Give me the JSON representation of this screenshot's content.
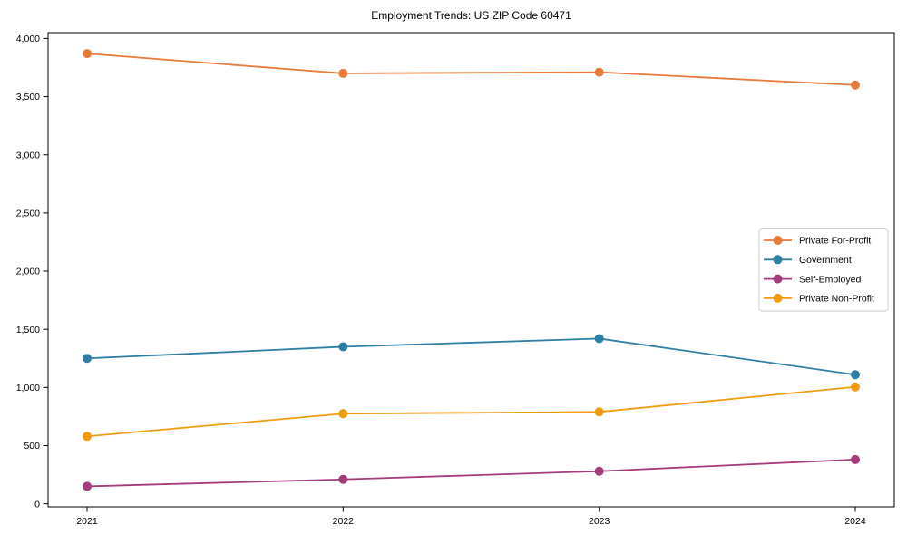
{
  "chart_data": {
    "type": "line",
    "title": "Employment Trends: US ZIP Code 60471",
    "xlabel": "",
    "ylabel": "",
    "categories": [
      "2021",
      "2022",
      "2023",
      "2024"
    ],
    "series": [
      {
        "name": "Private For-Profit",
        "color": "#e87a3c",
        "values": [
          3870,
          3700,
          3710,
          3600
        ]
      },
      {
        "name": "Government",
        "color": "#2f7fa3",
        "values": [
          1250,
          1350,
          1420,
          1110
        ]
      },
      {
        "name": "Self-Employed",
        "color": "#a33c7a",
        "values": [
          150,
          210,
          280,
          380
        ]
      },
      {
        "name": "Private Non-Profit",
        "color": "#f09c13",
        "values": [
          580,
          775,
          790,
          1005
        ]
      }
    ],
    "y_ticks": [
      0,
      500,
      1000,
      1500,
      2000,
      2500,
      3000,
      3500,
      4000
    ],
    "y_tick_labels": [
      "0",
      "500",
      "1,000",
      "1,500",
      "2,000",
      "2,500",
      "3,000",
      "3,500",
      "4,000"
    ],
    "ylim": [
      -26,
      4050
    ],
    "grid": false,
    "legend_position": "center-right",
    "marker": "circle",
    "background_color": "#ffffff",
    "spine_color": "#000000",
    "legend_border_color": "#cccccc"
  }
}
